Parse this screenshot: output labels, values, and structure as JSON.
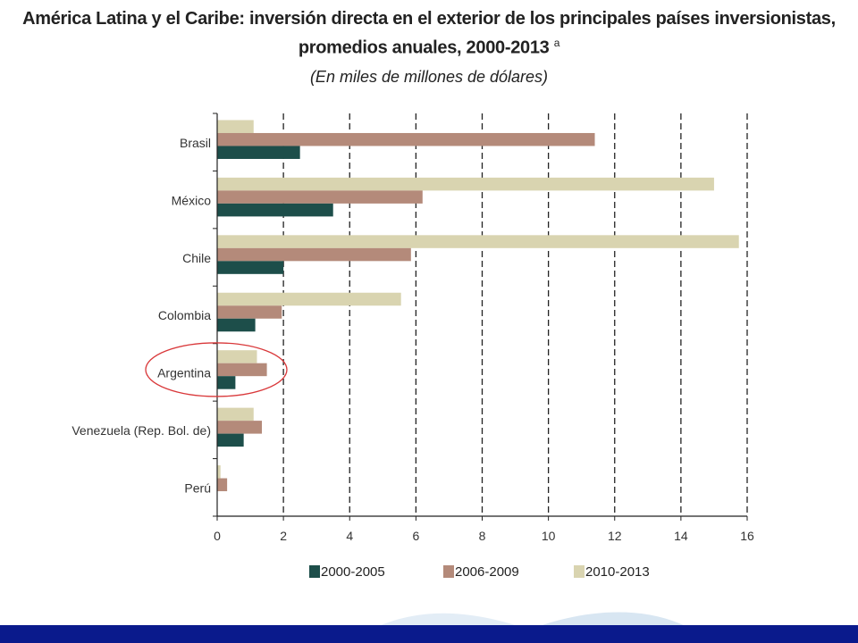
{
  "title": {
    "line1": "América Latina y el Caribe: inversión directa en el exterior de los principales países inversionistas,",
    "line2": "promedios anuales, 2000-2013",
    "footnote_mark": "a",
    "subtitle": "(En miles de millones de dólares)"
  },
  "colors": {
    "series_2000_2005": "#1d4e4a",
    "series_2006_2009": "#b48a7a",
    "series_2010_2013": "#d9d4b0",
    "axis": "#222222",
    "highlight": "#d9383a",
    "footer_bar": "#0a1a8c",
    "footer_band": "#dde9f4"
  },
  "highlight": {
    "category": "Argentina",
    "shape": "ellipse"
  },
  "chart_data": {
    "type": "bar",
    "orientation": "horizontal",
    "categories": [
      "Brasil",
      "México",
      "Chile",
      "Colombia",
      "Argentina",
      "Venezuela (Rep. Bol. de)",
      "Perú"
    ],
    "series": [
      {
        "name": "2000-2005",
        "values": [
          2.5,
          3.5,
          2.0,
          1.15,
          0.55,
          0.8,
          0.0
        ]
      },
      {
        "name": "2006-2009",
        "values": [
          11.4,
          6.2,
          5.85,
          1.95,
          1.5,
          1.35,
          0.3
        ]
      },
      {
        "name": "2010-2013",
        "values": [
          1.1,
          15.0,
          15.75,
          5.55,
          1.2,
          1.1,
          0.1
        ]
      }
    ],
    "xlim": [
      0,
      16
    ],
    "xticks": [
      "0",
      "2",
      "4",
      "6",
      "8",
      "10",
      "12",
      "14",
      "16"
    ],
    "grid": "vertical dashed",
    "legend_position": "bottom"
  }
}
